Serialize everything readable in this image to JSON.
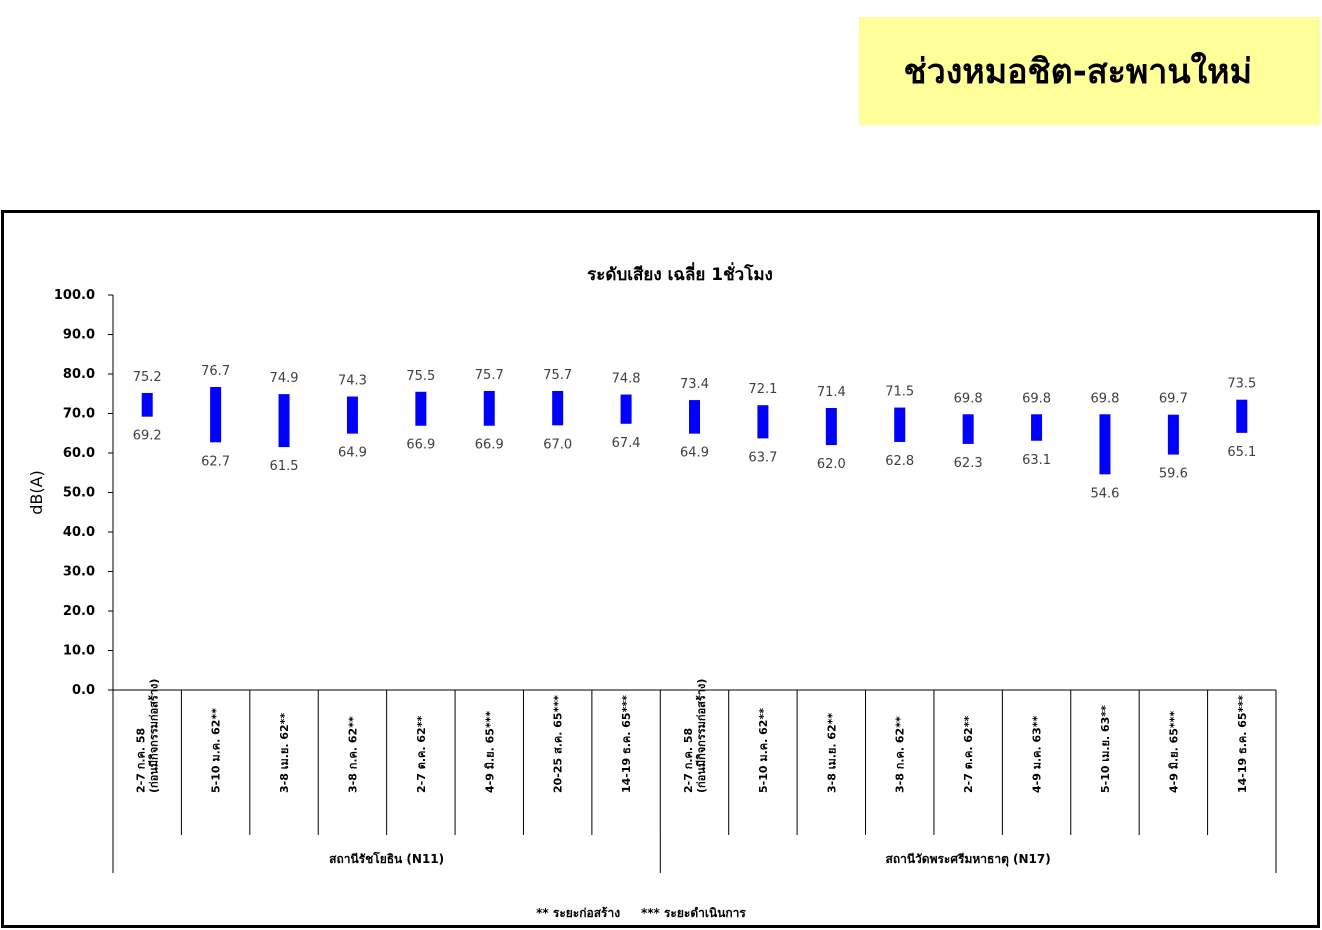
{
  "banner": {
    "title": "ช่วงหมอชิต-สะพานใหม่"
  },
  "footnote": "** ระยะก่อสร้าง     *** ระยะดำเนินการ",
  "colors": {
    "bar": "#0000ff",
    "banner_bg": "#ffff99",
    "axis": "#000000",
    "label": "#404040"
  },
  "chart_data": {
    "type": "bar",
    "subtype": "floating-range",
    "title": "ระดับเสียง เฉลี่ย 1ชั่วโมง",
    "ylabel": "dB(A)",
    "xlabel": "",
    "ylim": [
      0,
      100
    ],
    "yticks": [
      "0.0",
      "10.0",
      "20.0",
      "30.0",
      "40.0",
      "50.0",
      "60.0",
      "70.0",
      "80.0",
      "90.0",
      "100.0"
    ],
    "grid": false,
    "legend": "none",
    "groups": [
      {
        "name": "สถานีรัชโยธิน (N11)",
        "count": 8
      },
      {
        "name": "สถานีวัดพระศรีมหาธาตุ (N17)",
        "count": 9
      }
    ],
    "categories": [
      [
        "2-7 ก.ค. 58",
        "(ก่อนมีกิจกรรมก่อสร้าง)"
      ],
      [
        "5-10 ม.ค. 62**"
      ],
      [
        "3-8 เม.ย. 62**"
      ],
      [
        "3-8 ก.ค. 62**"
      ],
      [
        "2-7 ต.ค. 62**"
      ],
      [
        "4-9 มิ.ย. 65***"
      ],
      [
        "20-25 ส.ค. 65***"
      ],
      [
        "14-19 ธ.ค. 65***"
      ],
      [
        "2-7 ก.ค. 58",
        "(ก่อนมีกิจกรรมก่อสร้าง)"
      ],
      [
        "5-10 ม.ค. 62**"
      ],
      [
        "3-8 เม.ย. 62**"
      ],
      [
        "3-8 ก.ค. 62**"
      ],
      [
        "2-7 ต.ค. 62**"
      ],
      [
        "4-9 ม.ค. 63**"
      ],
      [
        "5-10 เม.ย. 63**"
      ],
      [
        "4-9 มิ.ย. 65***"
      ],
      [
        "14-19 ธ.ค. 65***"
      ]
    ],
    "max": [
      "75.2",
      "76.7",
      "74.9",
      "74.3",
      "75.5",
      "75.7",
      "75.7",
      "74.8",
      "73.4",
      "72.1",
      "71.4",
      "71.5",
      "69.8",
      "69.8",
      "69.8",
      "69.7",
      "73.5"
    ],
    "min": [
      "69.2",
      "62.7",
      "61.5",
      "64.9",
      "66.9",
      "66.9",
      "67.0",
      "67.4",
      "64.9",
      "63.7",
      "62.0",
      "62.8",
      "62.3",
      "63.1",
      "54.6",
      "59.6",
      "65.1"
    ]
  }
}
